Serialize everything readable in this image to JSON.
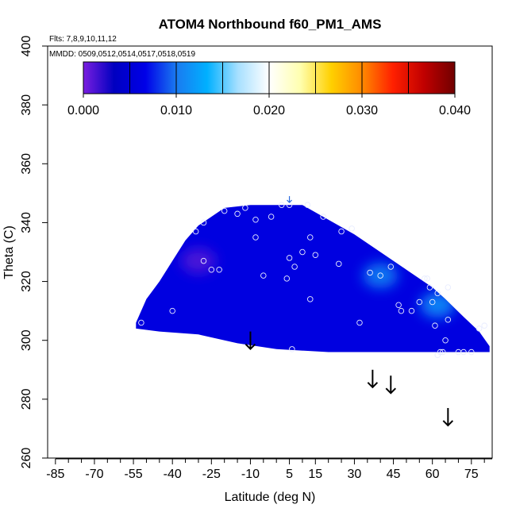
{
  "chart_data": {
    "type": "heatmap",
    "title": "ATOM4 Northbound f60_PM1_AMS",
    "subtitle_flights": "Flts: 7,8,9,10,11,12",
    "subtitle_dates": "MMDD: 0509,0512,0514,0517,0518,0519",
    "xlabel": "Latitude (deg N)",
    "ylabel": "Theta (C)",
    "xlim": [
      -88,
      83
    ],
    "ylim": [
      260,
      400
    ],
    "x_ticks": [
      -85,
      -70,
      -55,
      -40,
      -25,
      -10,
      5,
      15,
      30,
      45,
      60,
      75
    ],
    "x_tick_labels": [
      "-85",
      "-70",
      "-55",
      "-40",
      "-25",
      "-10",
      "5",
      "15",
      "30",
      "45",
      "60",
      "75"
    ],
    "x_minor_ticks": [
      -80,
      -75,
      -65,
      -60,
      -50,
      -45,
      -35,
      -30,
      -20,
      -15,
      -5,
      0,
      10,
      20,
      25,
      35,
      40,
      50,
      55,
      65,
      70,
      80
    ],
    "y_ticks": [
      260,
      280,
      300,
      320,
      340,
      360,
      380,
      400
    ],
    "y_tick_labels": [
      "260",
      "280",
      "300",
      "320",
      "340",
      "360",
      "380",
      "400"
    ],
    "colorbar": {
      "range": [
        0,
        0.04
      ],
      "boundaries": [
        0,
        0.005,
        0.01,
        0.015,
        0.02,
        0.025,
        0.03,
        0.035,
        0.04
      ],
      "tick_values": [
        0,
        0.01,
        0.02,
        0.03,
        0.04
      ],
      "tick_labels": [
        "0.000",
        "0.010",
        "0.020",
        "0.030",
        "0.040"
      ],
      "colors": [
        "#7a1ee0",
        "#0000c0",
        "#0000e8",
        "#1a7af0",
        "#00b0ff",
        "#a8e0ff",
        "#ffffff",
        "#ffffb0",
        "#ffd000",
        "#ff8a00",
        "#ff2000",
        "#c00000",
        "#700000"
      ]
    },
    "field_outline": [
      [
        -54,
        306
      ],
      [
        -50,
        314
      ],
      [
        -45,
        320
      ],
      [
        -40,
        327
      ],
      [
        -35,
        334
      ],
      [
        -30,
        339
      ],
      [
        -25,
        342
      ],
      [
        -20,
        345
      ],
      [
        -10,
        346
      ],
      [
        0,
        346
      ],
      [
        10,
        346
      ],
      [
        20,
        341
      ],
      [
        30,
        336
      ],
      [
        40,
        330
      ],
      [
        50,
        324
      ],
      [
        60,
        318
      ],
      [
        65,
        314
      ],
      [
        72,
        308
      ],
      [
        78,
        303
      ],
      [
        82,
        298
      ],
      [
        82,
        296
      ],
      [
        60,
        296
      ],
      [
        40,
        296
      ],
      [
        20,
        296
      ],
      [
        0,
        297
      ],
      [
        -15,
        299
      ],
      [
        -30,
        302
      ],
      [
        -45,
        303
      ],
      [
        -54,
        304
      ]
    ],
    "field_features": [
      {
        "name": "low-value patch",
        "lat": -30,
        "theta": 327,
        "value": 0.001
      },
      {
        "name": "higher-value band",
        "lat": 40,
        "theta": 322,
        "value": 0.011
      },
      {
        "name": "higher-value band north",
        "lat": 62,
        "theta": 312,
        "value": 0.012
      }
    ],
    "field_base_value": 0.006,
    "sample_points": [
      [
        -52,
        306
      ],
      [
        -40,
        310
      ],
      [
        -31,
        337
      ],
      [
        -28,
        327
      ],
      [
        -25,
        324
      ],
      [
        -22,
        324
      ],
      [
        -28,
        340
      ],
      [
        -20,
        344
      ],
      [
        -15,
        343
      ],
      [
        -12,
        345
      ],
      [
        -8,
        341
      ],
      [
        -8,
        335
      ],
      [
        -5,
        322
      ],
      [
        -2,
        342
      ],
      [
        2,
        346
      ],
      [
        5,
        346
      ],
      [
        5,
        328
      ],
      [
        7,
        325
      ],
      [
        10,
        330
      ],
      [
        12,
        346
      ],
      [
        13,
        335
      ],
      [
        15,
        329
      ],
      [
        18,
        342
      ],
      [
        24,
        326
      ],
      [
        25,
        337
      ],
      [
        29,
        338
      ],
      [
        4,
        321
      ],
      [
        13,
        314
      ],
      [
        36,
        323
      ],
      [
        32,
        306
      ],
      [
        40,
        322
      ],
      [
        44,
        325
      ],
      [
        47,
        312
      ],
      [
        48,
        310
      ],
      [
        52,
        310
      ],
      [
        55,
        313
      ],
      [
        58,
        321
      ],
      [
        60,
        313
      ],
      [
        61,
        305
      ],
      [
        62,
        316
      ],
      [
        62,
        295
      ],
      [
        63,
        296
      ],
      [
        64,
        296
      ],
      [
        65,
        300
      ],
      [
        66,
        307
      ],
      [
        66,
        318
      ],
      [
        70,
        296
      ],
      [
        72,
        296
      ],
      [
        75,
        296
      ],
      [
        78,
        304
      ],
      [
        80,
        305
      ],
      [
        6,
        297
      ],
      [
        57,
        321
      ],
      [
        59,
        318
      ]
    ],
    "arrows": [
      {
        "lat": 5,
        "theta": 349
      },
      {
        "lat": -10,
        "theta": 303
      },
      {
        "lat": 37,
        "theta": 290
      },
      {
        "lat": 44,
        "theta": 288
      },
      {
        "lat": 66,
        "theta": 277
      }
    ]
  }
}
